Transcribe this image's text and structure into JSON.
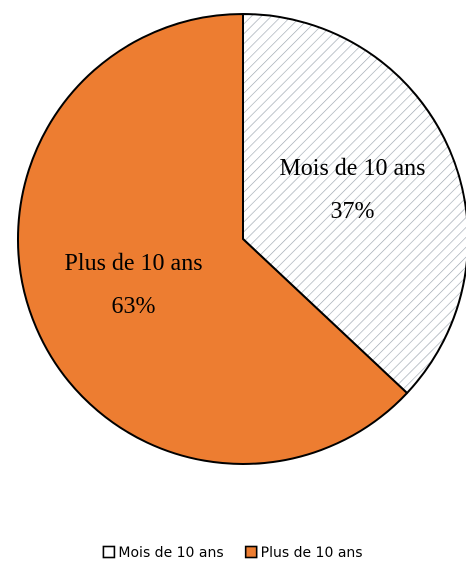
{
  "chart_data": {
    "type": "pie",
    "categories": [
      "Mois de 10 ans",
      "Plus de 10 ans"
    ],
    "values": [
      37,
      63
    ],
    "value_labels": [
      "37%",
      "63%"
    ],
    "colors": [
      "#ffffff",
      "#ed7d31"
    ],
    "hatched": [
      true,
      false
    ],
    "legend": "bottom"
  }
}
